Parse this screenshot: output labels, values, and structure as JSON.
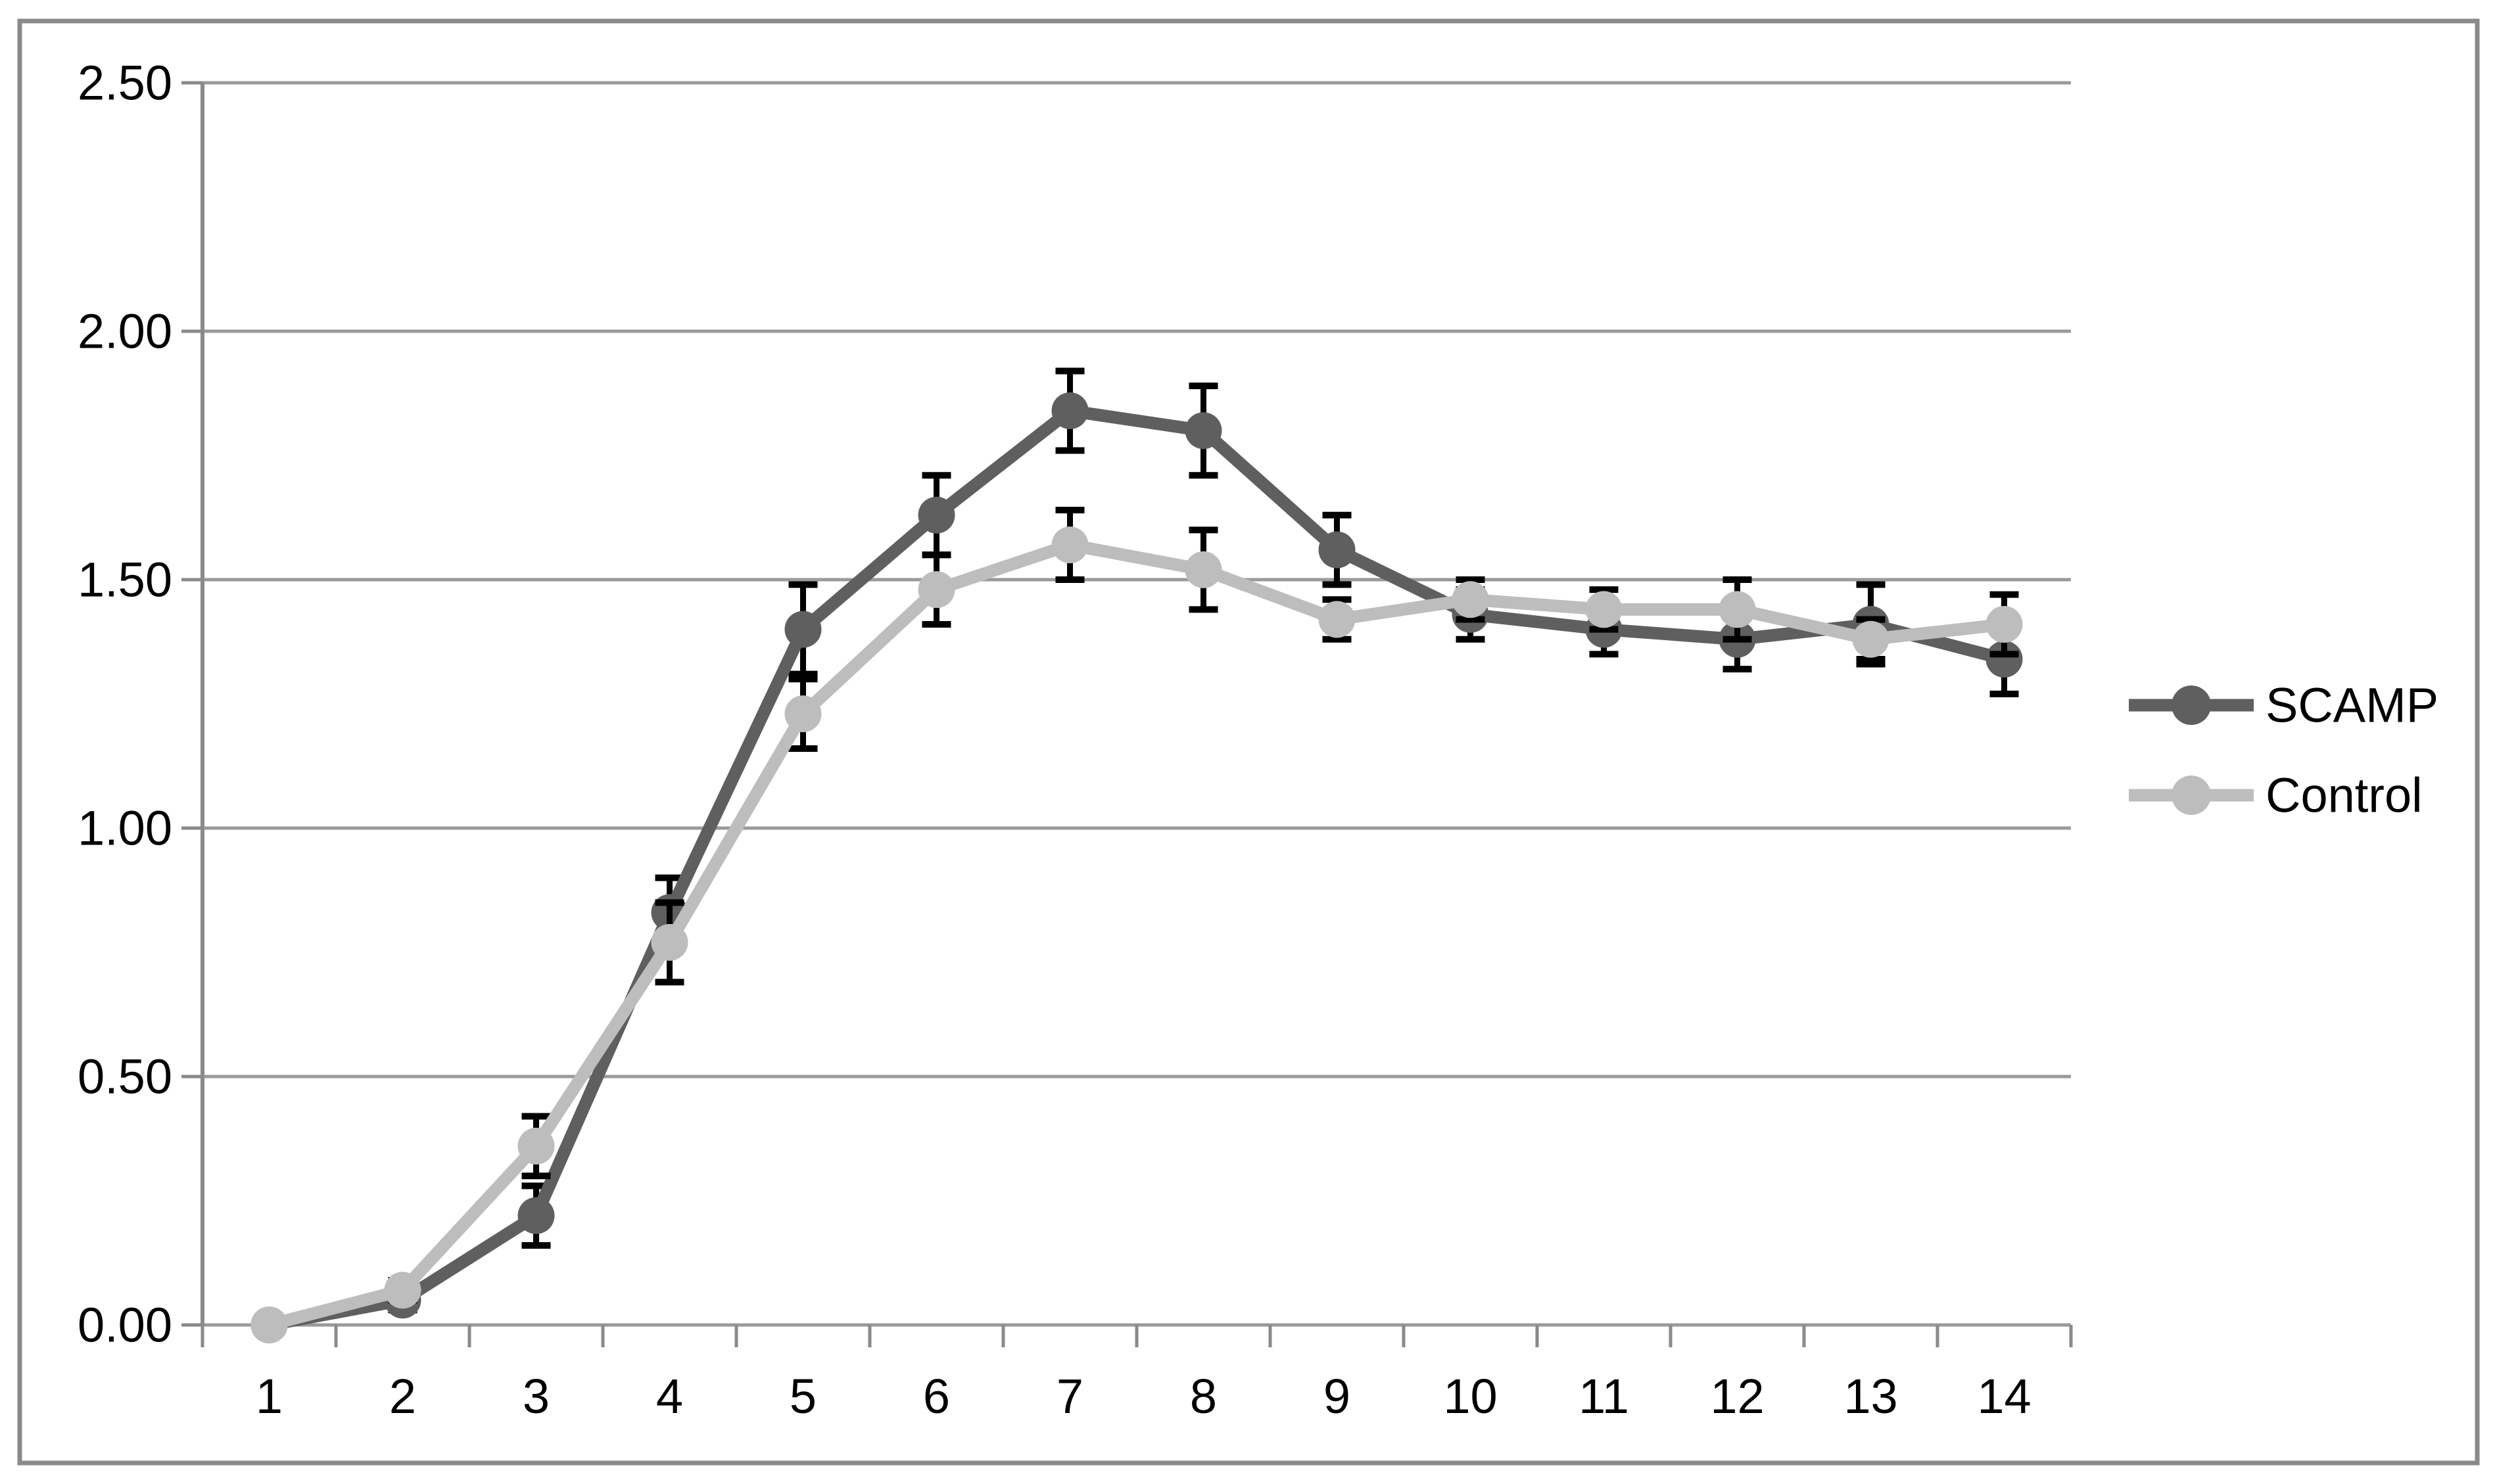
{
  "chart_data": {
    "type": "line",
    "title": "",
    "xlabel": "",
    "ylabel": "",
    "categories": [
      "1",
      "2",
      "3",
      "4",
      "5",
      "6",
      "7",
      "8",
      "9",
      "10",
      "11",
      "12",
      "13",
      "14"
    ],
    "series": [
      {
        "name": "SCAMP",
        "color": "#5F5F5F",
        "values": [
          0.0,
          0.05,
          0.22,
          0.83,
          1.4,
          1.63,
          1.84,
          1.8,
          1.56,
          1.43,
          1.4,
          1.38,
          1.41,
          1.34
        ],
        "errors": [
          0.0,
          0.02,
          0.06,
          0.07,
          0.09,
          0.08,
          0.08,
          0.09,
          0.07,
          0.05,
          0.05,
          0.06,
          0.08,
          0.07
        ]
      },
      {
        "name": "Control",
        "color": "#BDBDBD",
        "values": [
          0.0,
          0.07,
          0.36,
          0.77,
          1.23,
          1.48,
          1.57,
          1.52,
          1.42,
          1.46,
          1.44,
          1.44,
          1.38,
          1.41
        ],
        "errors": [
          0.0,
          0.02,
          0.06,
          0.08,
          0.07,
          0.07,
          0.07,
          0.08,
          0.04,
          0.04,
          0.04,
          0.06,
          0.04,
          0.06
        ]
      }
    ],
    "ylim": [
      0,
      2.5
    ],
    "ytick_step": 0.5,
    "ytick_labels": [
      "0.00",
      "0.50",
      "1.00",
      "1.50",
      "2.00",
      "2.50"
    ],
    "grid": "horizontal",
    "legend_position": "right",
    "error_bars": true,
    "marker": "circle"
  },
  "colors": {
    "background": "#FFFFFF",
    "border": "#8A8A8A",
    "axis": "#8A8A8A",
    "gridline": "#9A9A9A",
    "error_bar": "#000000",
    "text": "#000000"
  }
}
